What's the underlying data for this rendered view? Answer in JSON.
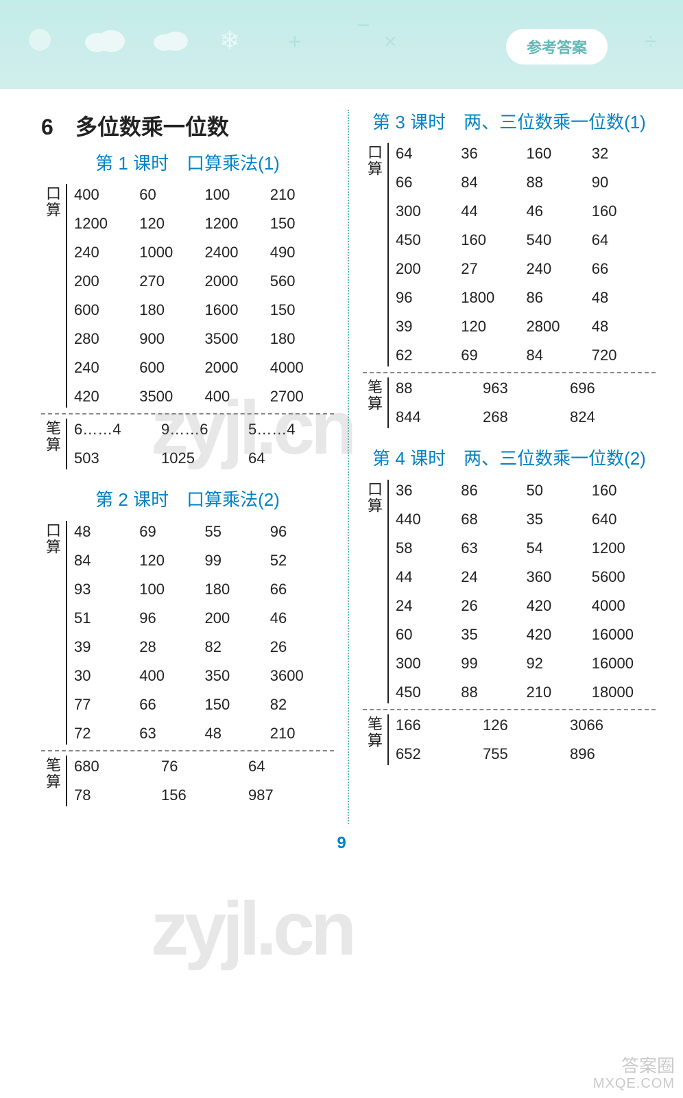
{
  "banner": {
    "badge": "参考答案",
    "bg_color": "#c4ece9",
    "badge_bg": "#ffffff",
    "badge_fg": "#5fbab6"
  },
  "page_number": "9",
  "colors": {
    "heading": "#0082c4",
    "body": "#222222",
    "divider": "#5fbab6",
    "dash": "#888888"
  },
  "typography": {
    "chapter_fontsize": 32,
    "lesson_fontsize": 26,
    "cell_fontsize": 22,
    "font_family": "Microsoft YaHei"
  },
  "chapter": {
    "number": "6",
    "title": "多位数乘一位数"
  },
  "lessons": {
    "l1": {
      "title": "第 1 课时　口算乘法(1)",
      "kousuan_label": "口算",
      "bisuan_label": "笔算",
      "kousuan": {
        "cols": 4,
        "rows": [
          [
            "400",
            "60",
            "100",
            "210"
          ],
          [
            "1200",
            "120",
            "1200",
            "150"
          ],
          [
            "240",
            "1000",
            "2400",
            "490"
          ],
          [
            "200",
            "270",
            "2000",
            "560"
          ],
          [
            "600",
            "180",
            "1600",
            "150"
          ],
          [
            "280",
            "900",
            "3500",
            "180"
          ],
          [
            "240",
            "600",
            "2000",
            "4000"
          ],
          [
            "420",
            "3500",
            "400",
            "2700"
          ]
        ]
      },
      "bisuan": {
        "cols": 3,
        "rows": [
          [
            "6……4",
            "9……6",
            "5……4"
          ],
          [
            "503",
            "1025",
            "64"
          ]
        ]
      }
    },
    "l2": {
      "title": "第 2 课时　口算乘法(2)",
      "kousuan_label": "口算",
      "bisuan_label": "笔算",
      "kousuan": {
        "cols": 4,
        "rows": [
          [
            "48",
            "69",
            "55",
            "96"
          ],
          [
            "84",
            "120",
            "99",
            "52"
          ],
          [
            "93",
            "100",
            "180",
            "66"
          ],
          [
            "51",
            "96",
            "200",
            "46"
          ],
          [
            "39",
            "28",
            "82",
            "26"
          ],
          [
            "30",
            "400",
            "350",
            "3600"
          ],
          [
            "77",
            "66",
            "150",
            "82"
          ],
          [
            "72",
            "63",
            "48",
            "210"
          ]
        ]
      },
      "bisuan": {
        "cols": 3,
        "rows": [
          [
            "680",
            "76",
            "64"
          ],
          [
            "78",
            "156",
            "987"
          ]
        ]
      }
    },
    "l3": {
      "title": "第 3 课时　两、三位数乘一位数(1)",
      "kousuan_label": "口算",
      "bisuan_label": "笔算",
      "kousuan": {
        "cols": 4,
        "rows": [
          [
            "64",
            "36",
            "160",
            "32"
          ],
          [
            "66",
            "84",
            "88",
            "90"
          ],
          [
            "300",
            "44",
            "46",
            "160"
          ],
          [
            "450",
            "160",
            "540",
            "64"
          ],
          [
            "200",
            "27",
            "240",
            "66"
          ],
          [
            "96",
            "1800",
            "86",
            "48"
          ],
          [
            "39",
            "120",
            "2800",
            "48"
          ],
          [
            "62",
            "69",
            "84",
            "720"
          ]
        ]
      },
      "bisuan": {
        "cols": 3,
        "rows": [
          [
            "88",
            "963",
            "696"
          ],
          [
            "844",
            "268",
            "824"
          ]
        ]
      }
    },
    "l4": {
      "title": "第 4 课时　两、三位数乘一位数(2)",
      "kousuan_label": "口算",
      "bisuan_label": "笔算",
      "kousuan": {
        "cols": 4,
        "rows": [
          [
            "36",
            "86",
            "50",
            "160"
          ],
          [
            "440",
            "68",
            "35",
            "640"
          ],
          [
            "58",
            "63",
            "54",
            "1200"
          ],
          [
            "44",
            "24",
            "360",
            "5600"
          ],
          [
            "24",
            "26",
            "420",
            "4000"
          ],
          [
            "60",
            "35",
            "420",
            "16000"
          ],
          [
            "300",
            "99",
            "92",
            "16000"
          ],
          [
            "450",
            "88",
            "210",
            "18000"
          ]
        ]
      },
      "bisuan": {
        "cols": 3,
        "rows": [
          [
            "166",
            "126",
            "3066"
          ],
          [
            "652",
            "755",
            "896"
          ]
        ]
      }
    }
  },
  "watermarks": {
    "w1": "zyjl.cn",
    "w2": "zyjl.cn"
  },
  "corner": {
    "line1": "答案圈",
    "line2": "MXQE.COM"
  }
}
